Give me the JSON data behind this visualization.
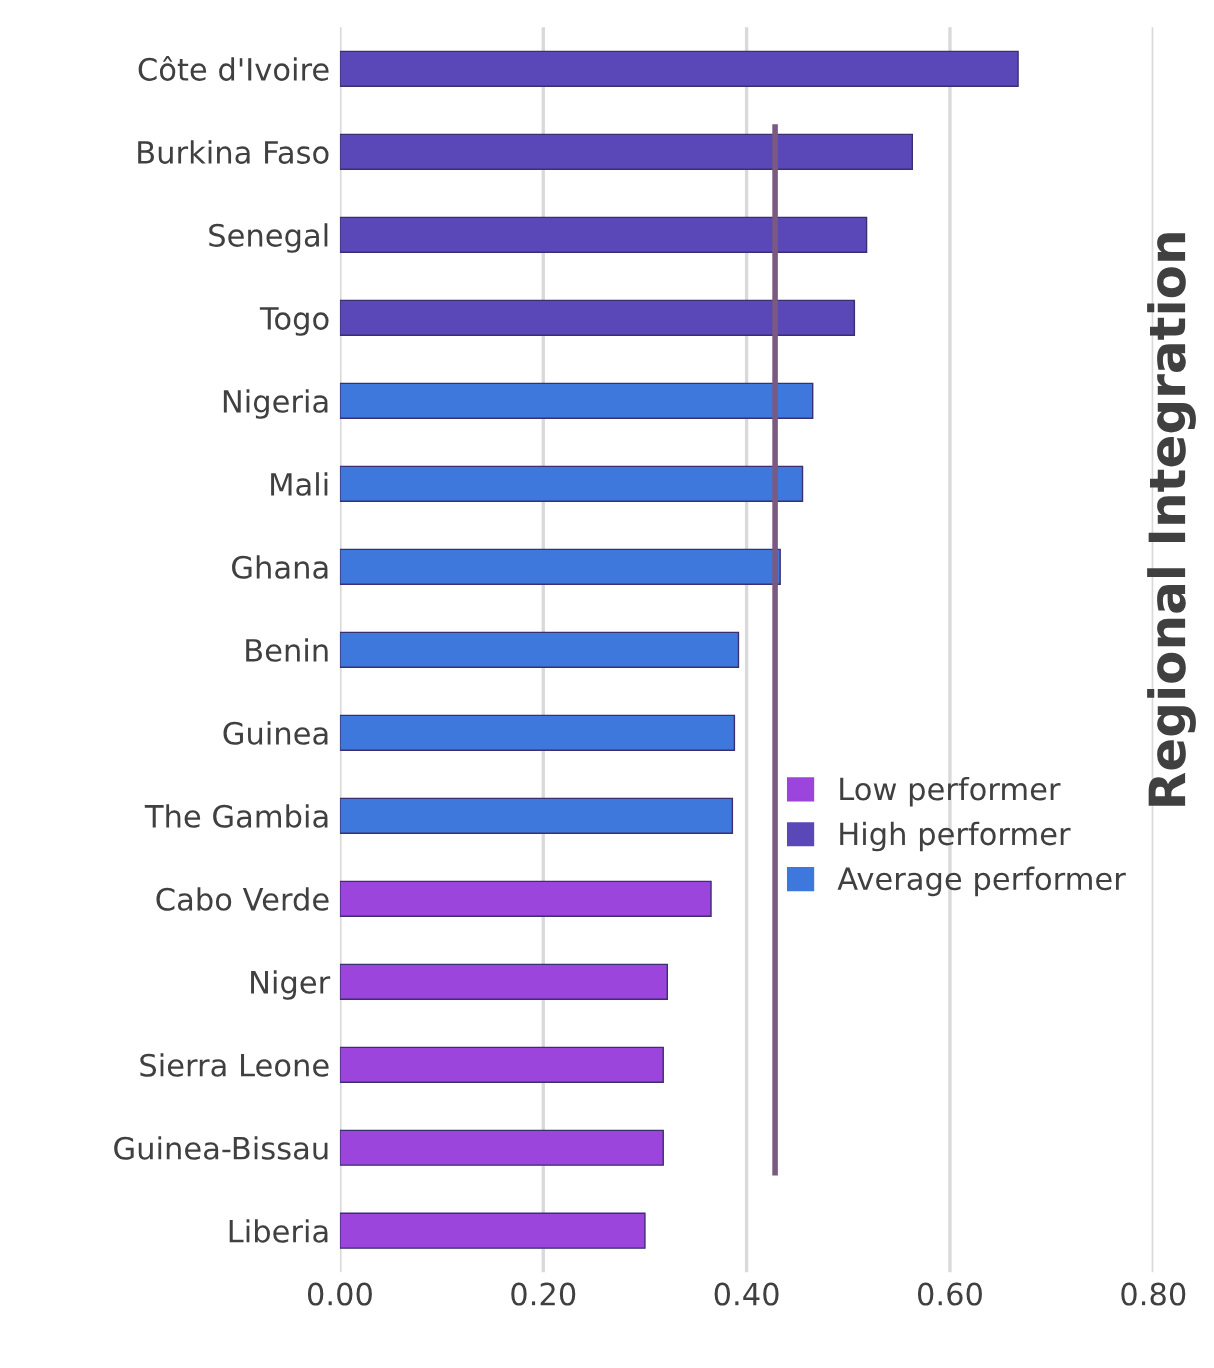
{
  "chart_data": {
    "type": "bar",
    "orientation": "horizontal",
    "title": "Regional Integration",
    "categories": [
      "Côte d'Ivoire",
      "Burkina Faso",
      "Senegal",
      "Togo",
      "Nigeria",
      "Mali",
      "Ghana",
      "Benin",
      "Guinea",
      "The Gambia",
      "Cabo Verde",
      "Niger",
      "Sierra Leone",
      "Guinea-Bissau",
      "Liberia"
    ],
    "series": [
      {
        "name": "Low performer",
        "color": "#9b45dc",
        "values": [
          null,
          null,
          null,
          null,
          null,
          null,
          null,
          null,
          null,
          null,
          0.365,
          0.322,
          0.318,
          0.318,
          0.3
        ]
      },
      {
        "name": "High performer",
        "color": "#5a48b8",
        "values": [
          0.667,
          0.563,
          0.518,
          0.506,
          null,
          null,
          null,
          null,
          null,
          null,
          null,
          null,
          null,
          null,
          null
        ]
      },
      {
        "name": "Average performer",
        "color": "#3f78dc",
        "values": [
          null,
          null,
          null,
          null,
          0.465,
          0.455,
          0.433,
          0.392,
          0.388,
          0.386,
          null,
          null,
          null,
          null,
          null
        ]
      }
    ],
    "xlim": [
      0,
      0.8
    ],
    "xticks": [
      {
        "value": 0,
        "label": "0.00"
      },
      {
        "value": 0.2,
        "label": "0.20"
      },
      {
        "value": 0.4,
        "label": "0.40"
      },
      {
        "value": 0.6,
        "label": "0.60"
      },
      {
        "value": 0.8,
        "label": "0.80"
      }
    ],
    "ref_lines": [
      {
        "axis": "x",
        "value": 0.428,
        "color": "#7a5a80"
      }
    ],
    "grid": "x",
    "legend": "right"
  }
}
